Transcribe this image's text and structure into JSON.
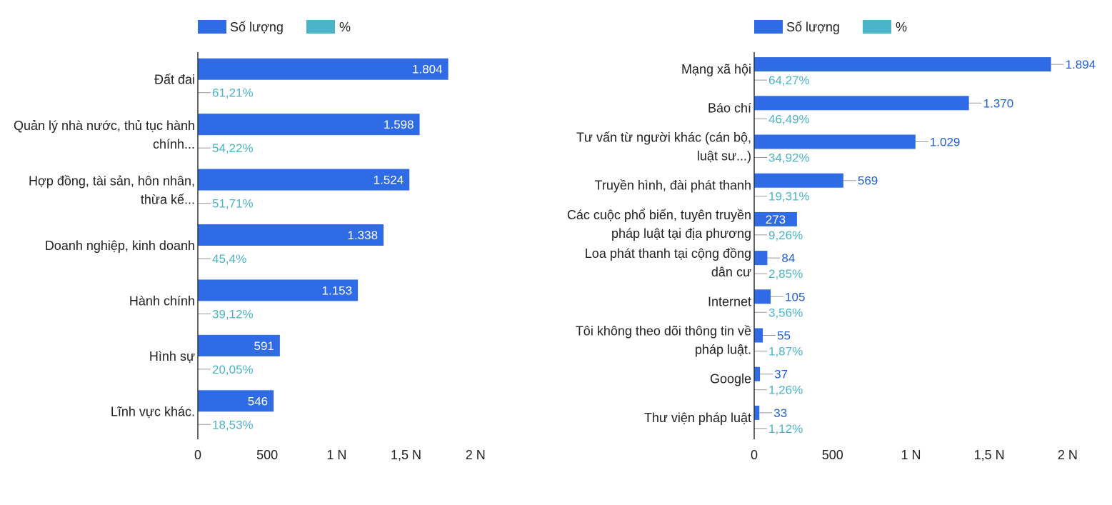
{
  "chart_data": [
    {
      "type": "bar",
      "orientation": "horizontal",
      "legend": [
        "Số lượng",
        "%"
      ],
      "legend_position": "top-left",
      "categories": [
        "Đất đai",
        "Quản lý nhà nước, thủ tục hành chính...",
        "Hợp đồng, tài sản, hôn nhân, thừa kế...",
        "Doanh nghiệp, kinh doanh",
        "Hành chính",
        "Hình sự",
        "Lĩnh vực khác."
      ],
      "category_lines": [
        [
          "Đất đai"
        ],
        [
          "Quản lý nhà nước, thủ tục hành",
          "chính..."
        ],
        [
          "Hợp đồng, tài sản, hôn nhân,",
          "thừa kế..."
        ],
        [
          "Doanh nghiệp, kinh doanh"
        ],
        [
          "Hành chính"
        ],
        [
          "Hình sự"
        ],
        [
          "Lĩnh vực khác."
        ]
      ],
      "series": [
        {
          "name": "Số lượng",
          "color": "#2f6be4",
          "values": [
            1804,
            1598,
            1524,
            1338,
            1153,
            591,
            546
          ],
          "labels": [
            "1.804",
            "1.598",
            "1.524",
            "1.338",
            "1.153",
            "591",
            "546"
          ]
        },
        {
          "name": "%",
          "color": "#4bb4c8",
          "values": [
            61.21,
            54.22,
            51.71,
            45.4,
            39.12,
            20.05,
            18.53
          ],
          "labels": [
            "61,21%",
            "54,22%",
            "51,71%",
            "45,4%",
            "39,12%",
            "20,05%",
            "18,53%"
          ]
        }
      ],
      "xlim": [
        0,
        2000
      ],
      "xticks": [
        0,
        500,
        1000,
        1500,
        2000
      ],
      "xtick_labels": [
        "0",
        "500",
        "1 N",
        "1,5 N",
        "2 N"
      ],
      "value_label_inside_bars": true
    },
    {
      "type": "bar",
      "orientation": "horizontal",
      "legend": [
        "Số lượng",
        "%"
      ],
      "legend_position": "top-left",
      "categories": [
        "Mạng xã hội",
        "Báo chí",
        "Tư vấn từ người khác (cán bộ, luật sư...)",
        "Truyền hình, đài phát thanh",
        "Các cuộc phổ biến, tuyên truyền pháp luật tại địa phương",
        "Loa phát thanh tại cộng đồng dân cư",
        "Internet",
        "Tôi không theo dõi thông tin về pháp luật.",
        "Google",
        "Thư viện pháp luật"
      ],
      "category_lines": [
        [
          "Mạng xã hội"
        ],
        [
          "Báo chí"
        ],
        [
          "Tư vấn từ người khác (cán bộ,",
          "luật sư...)"
        ],
        [
          "Truyền hình, đài phát thanh"
        ],
        [
          "Các cuộc phổ biến, tuyên truyền",
          "pháp luật tại địa phương"
        ],
        [
          "Loa phát thanh tại cộng đồng",
          "dân cư"
        ],
        [
          "Internet"
        ],
        [
          "Tôi không theo dõi thông tin về",
          "pháp luật."
        ],
        [
          "Google"
        ],
        [
          "Thư viện pháp luật"
        ]
      ],
      "series": [
        {
          "name": "Số lượng",
          "color": "#2f6be4",
          "values": [
            1894,
            1370,
            1029,
            569,
            273,
            84,
            105,
            55,
            37,
            33
          ],
          "labels": [
            "1.894",
            "1.370",
            "1.029",
            "569",
            "273",
            "84",
            "105",
            "55",
            "37",
            "33"
          ]
        },
        {
          "name": "%",
          "color": "#4bb4c8",
          "values": [
            64.27,
            46.49,
            34.92,
            19.31,
            9.26,
            2.85,
            3.56,
            1.87,
            1.26,
            1.12
          ],
          "labels": [
            "64,27%",
            "46,49%",
            "34,92%",
            "19,31%",
            "9,26%",
            "2,85%",
            "3,56%",
            "1,87%",
            "1,26%",
            "1,12%"
          ]
        }
      ],
      "xlim": [
        0,
        2000
      ],
      "xticks": [
        0,
        500,
        1000,
        1500,
        2000
      ],
      "xtick_labels": [
        "0",
        "500",
        "1 N",
        "1,5 N",
        "2 N"
      ],
      "value_label_inside_bars": false
    }
  ]
}
